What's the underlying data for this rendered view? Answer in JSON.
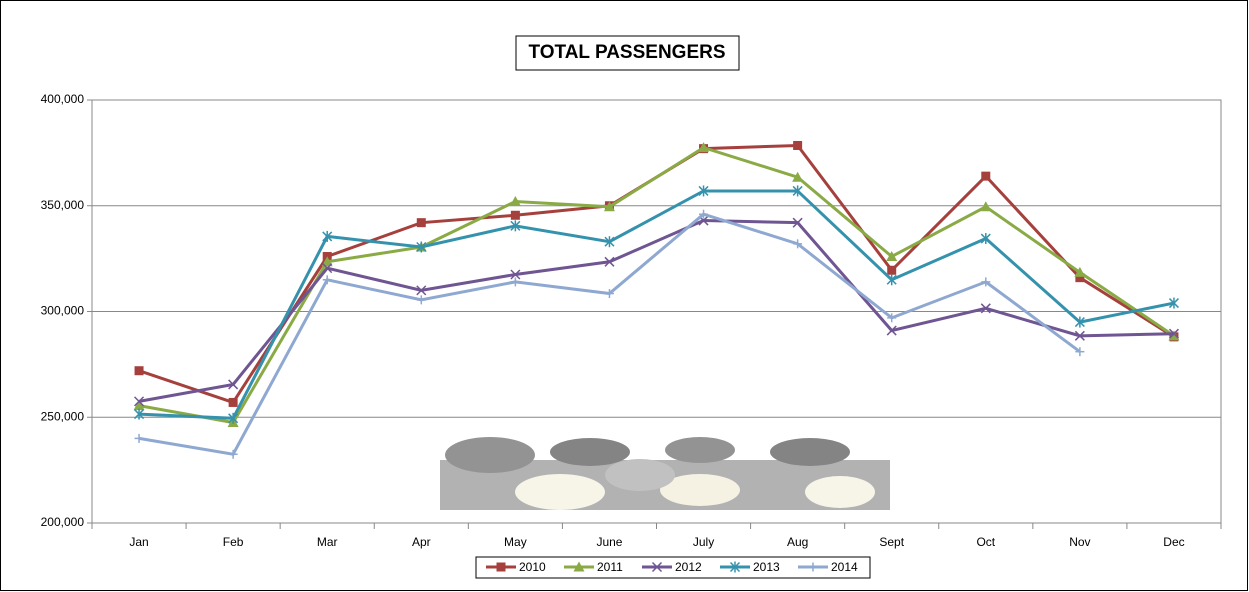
{
  "chart_data": {
    "type": "line",
    "title": "TOTAL PASSENGERS",
    "categories": [
      "Jan",
      "Feb",
      "Mar",
      "Apr",
      "May",
      "June",
      "July",
      "Aug",
      "Sept",
      "Oct",
      "Nov",
      "Dec"
    ],
    "series": [
      {
        "name": "2010",
        "color": "#a5403d",
        "marker": "square",
        "values": [
          272000,
          257000,
          326000,
          342000,
          345500,
          350000,
          377000,
          378500,
          319500,
          364000,
          316000,
          288000
        ]
      },
      {
        "name": "2011",
        "color": "#8aaa45",
        "marker": "triangle",
        "values": [
          255500,
          247500,
          323500,
          330500,
          352000,
          349500,
          377500,
          363500,
          326000,
          349500,
          318500,
          288500
        ]
      },
      {
        "name": "2012",
        "color": "#6f5592",
        "marker": "x",
        "values": [
          257500,
          265500,
          320500,
          310000,
          317500,
          323500,
          343000,
          342000,
          291000,
          301500,
          288500,
          289500
        ]
      },
      {
        "name": "2013",
        "color": "#3592ad",
        "marker": "star",
        "values": [
          251500,
          249500,
          335500,
          330500,
          340500,
          333000,
          357000,
          357000,
          315000,
          334500,
          295000,
          304000
        ]
      },
      {
        "name": "2014",
        "color": "#8ea8d1",
        "marker": "plus",
        "values": [
          240000,
          232500,
          315000,
          305500,
          314000,
          308500,
          346000,
          332000,
          297000,
          314000,
          281000,
          null
        ]
      }
    ],
    "ylim": [
      200000,
      400000
    ],
    "yticks": [
      {
        "value": 200000,
        "label": "200,000"
      },
      {
        "value": 250000,
        "label": "250,000"
      },
      {
        "value": 300000,
        "label": "300,000"
      },
      {
        "value": 350000,
        "label": "350,000"
      },
      {
        "value": 400000,
        "label": "400,000"
      }
    ],
    "grid": true,
    "legend": "bottom"
  }
}
